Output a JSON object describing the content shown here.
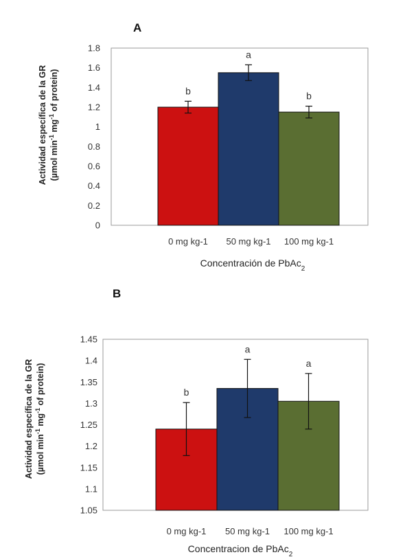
{
  "chart_data": [
    {
      "type": "bar",
      "panel": "A",
      "categories": [
        "0 mg kg-1",
        "50 mg kg-1",
        "100 mg kg-1"
      ],
      "values": [
        1.2,
        1.55,
        1.15
      ],
      "errors": [
        0.06,
        0.08,
        0.06
      ],
      "letters": [
        "b",
        "a",
        "b"
      ],
      "colors": [
        "#cc1111",
        "#1f3a6b",
        "#5a6e32"
      ],
      "ylim": [
        0,
        1.8
      ],
      "yticks": [
        "0",
        "0.2",
        "0.4",
        "0.6",
        "0.8",
        "1",
        "1.2",
        "1.4",
        "1.6",
        "1.8"
      ],
      "xlabel": "Concentración de PbAc",
      "xlabel_sub": "2",
      "ylabel_line1": "Actividad específica  de la GR",
      "ylabel_line2": "(µmol min",
      "ylabel_line2_sup1": "-1",
      "ylabel_line2_mid": " mg",
      "ylabel_line2_sup2": "-1",
      "ylabel_line2_end": " of protein)"
    },
    {
      "type": "bar",
      "panel": "B",
      "categories": [
        "0 mg kg-1",
        "50 mg kg-1",
        "100 mg kg-1"
      ],
      "values": [
        1.24,
        1.335,
        1.305
      ],
      "errors": [
        0.062,
        0.068,
        0.065
      ],
      "letters": [
        "b",
        "a",
        "a"
      ],
      "colors": [
        "#cc1111",
        "#1f3a6b",
        "#5a6e32"
      ],
      "ylim": [
        1.05,
        1.45
      ],
      "yticks": [
        "1.05",
        "1.1",
        "1.15",
        "1.2",
        "1.25",
        "1.3",
        "1.35",
        "1.4",
        "1.45"
      ],
      "xlabel": "Concentracion de PbAc",
      "xlabel_sub": "2",
      "ylabel_line1": "Actividad específica  de la GR",
      "ylabel_line2": "(µmol min",
      "ylabel_line2_sup1": "-1",
      "ylabel_line2_mid": " mg",
      "ylabel_line2_sup2": "-1",
      "ylabel_line2_end": " of protein)"
    }
  ]
}
